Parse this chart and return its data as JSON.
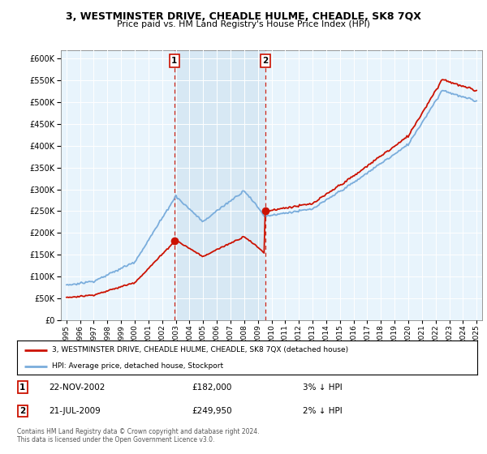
{
  "title": "3, WESTMINSTER DRIVE, CHEADLE HULME, CHEADLE, SK8 7QX",
  "subtitle": "Price paid vs. HM Land Registry's House Price Index (HPI)",
  "legend_line1": "3, WESTMINSTER DRIVE, CHEADLE HULME, CHEADLE, SK8 7QX (detached house)",
  "legend_line2": "HPI: Average price, detached house, Stockport",
  "transaction1_date": "22-NOV-2002",
  "transaction1_price": 182000,
  "transaction1_pct": "3% ↓ HPI",
  "transaction2_date": "21-JUL-2009",
  "transaction2_price": 249950,
  "transaction2_pct": "2% ↓ HPI",
  "footer": "Contains HM Land Registry data © Crown copyright and database right 2024.\nThis data is licensed under the Open Government Licence v3.0.",
  "hpi_color": "#7aaddc",
  "price_color": "#cc1100",
  "vline_color": "#cc1100",
  "shade_color": "#ddeeff",
  "background_plot": "#e8f4fc",
  "ylim": [
    0,
    620000
  ],
  "yticks": [
    0,
    50000,
    100000,
    150000,
    200000,
    250000,
    300000,
    350000,
    400000,
    450000,
    500000,
    550000,
    600000
  ],
  "transaction1_year": 2002.9,
  "transaction2_year": 2009.55
}
